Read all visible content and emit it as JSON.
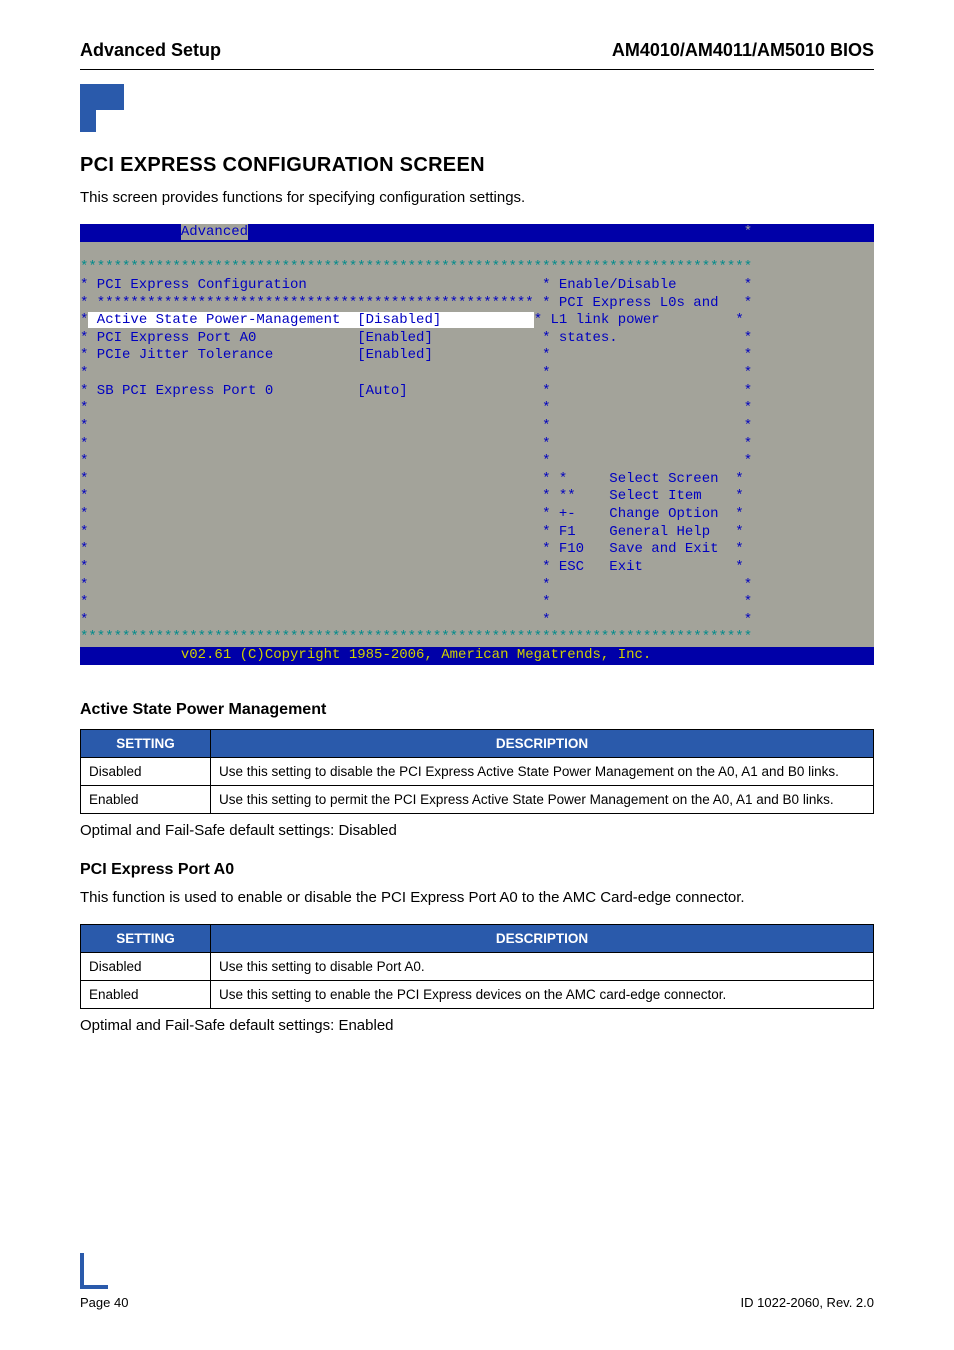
{
  "header": {
    "left": "Advanced Setup",
    "right": "AM4010/AM4011/AM5010 BIOS"
  },
  "title": "PCI EXPRESS CONFIGURATION SCREEN",
  "intro": "This screen provides functions for specifying configuration settings.",
  "bios": {
    "menubar_pre": "            ",
    "tab": "Advanced",
    "menubar_post": "                                                          ",
    "heading": "PCI Express Configuration",
    "items": [
      {
        "label": "Active State Power-Management",
        "value": "[Disabled]",
        "highlight": true
      },
      {
        "label": "PCI Express Port A0",
        "value": "[Enabled]",
        "highlight": false
      },
      {
        "label": "PCIe Jitter Tolerance",
        "value": "[Enabled]",
        "highlight": false
      },
      {
        "label": "",
        "value": "",
        "highlight": false
      },
      {
        "label": "SB PCI Express Port 0",
        "value": "[Auto]",
        "highlight": false
      }
    ],
    "help": [
      "Enable/Disable",
      "PCI Express L0s and",
      "L1 link power",
      "states."
    ],
    "nav": [
      {
        "key": "*",
        "label": "Select Screen"
      },
      {
        "key": "**",
        "label": "Select Item"
      },
      {
        "key": "+-",
        "label": "Change Option"
      },
      {
        "key": "F1",
        "label": "General Help"
      },
      {
        "key": "F10",
        "label": "Save and Exit"
      },
      {
        "key": "ESC",
        "label": "Exit"
      }
    ],
    "footer": "v02.61 (C)Copyright 1985-2006, American Megatrends, Inc."
  },
  "sections": [
    {
      "title": "Active State Power Management",
      "intro": "",
      "columns": [
        "SETTING",
        "DESCRIPTION"
      ],
      "rows": [
        [
          "Disabled",
          "Use this setting to disable the PCI Express Active State Power Management on the A0, A1 and B0 links."
        ],
        [
          "Enabled",
          "Use this setting to permit the PCI Express Active State Power Management on the A0, A1 and B0 links."
        ]
      ],
      "defaults": "Optimal and Fail-Safe default settings: Disabled"
    },
    {
      "title": "PCI Express Port A0",
      "intro": "This function is used to enable or disable the PCI Express Port A0 to the AMC Card-edge connector.",
      "columns": [
        "SETTING",
        "DESCRIPTION"
      ],
      "rows": [
        [
          "Disabled",
          "Use this setting to disable Port A0."
        ],
        [
          "Enabled",
          "Use this setting to enable the PCI Express devices on the AMC card-edge connector."
        ]
      ],
      "defaults": "Optimal and Fail-Safe default settings: Enabled"
    }
  ],
  "footer": {
    "left": "Page 40",
    "right": "ID 1022-2060, Rev. 2.0"
  },
  "colors": {
    "brand": "#2a5aab",
    "bios_bg": "#a3a39a",
    "bios_fg": "#0000c0",
    "bios_bar": "#0000a8",
    "bios_yellow": "#cacc00"
  }
}
